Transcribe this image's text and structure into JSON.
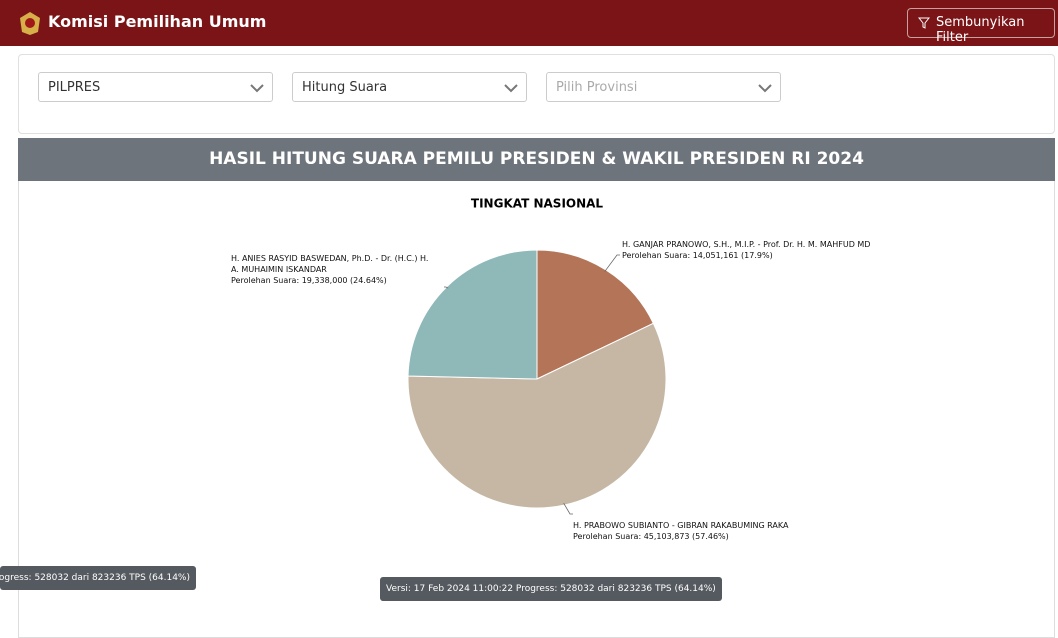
{
  "header": {
    "title": "Komisi Pemilihan Umum",
    "button": "Sembunyikan Filter"
  },
  "filters": [
    "PILPRES",
    "Hitung Suara",
    "Pilih Provinsi"
  ],
  "panel": {
    "title": "HASIL HITUNG SUARA PEMILU PRESIDEN & WAKIL PRESIDEN RI 2024"
  },
  "chart_data": {
    "type": "pie",
    "title": "TINGKAT NASIONAL",
    "categories": [
      "H. GANJAR PRANOWO, S.H., M.I.P. - Prof. Dr. H. M. MAHFUD MD",
      "H. PRABOWO SUBIANTO - GIBRAN RAKABUMING RAKA",
      "H. ANIES RASYID BASWEDAN, Ph.D. - Dr. (H.C.) H. A. MUHAIMIN ISKANDAR"
    ],
    "values": [
      14051161,
      45103873,
      19338000
    ],
    "value_labels": [
      "14,051,161 (17.9%)",
      "45,103,873 (57.46%)",
      "19,338,000 (24.64%)"
    ],
    "value_prefix": "Perolehan Suara:",
    "colors": [
      "#b47457",
      "#c5b7a4",
      "#8fb8b8"
    ]
  },
  "tooltip": "Versi: 17 Feb 2024 11:00:22 Progress: 528032 dari 823236 TPS (64.14%)"
}
